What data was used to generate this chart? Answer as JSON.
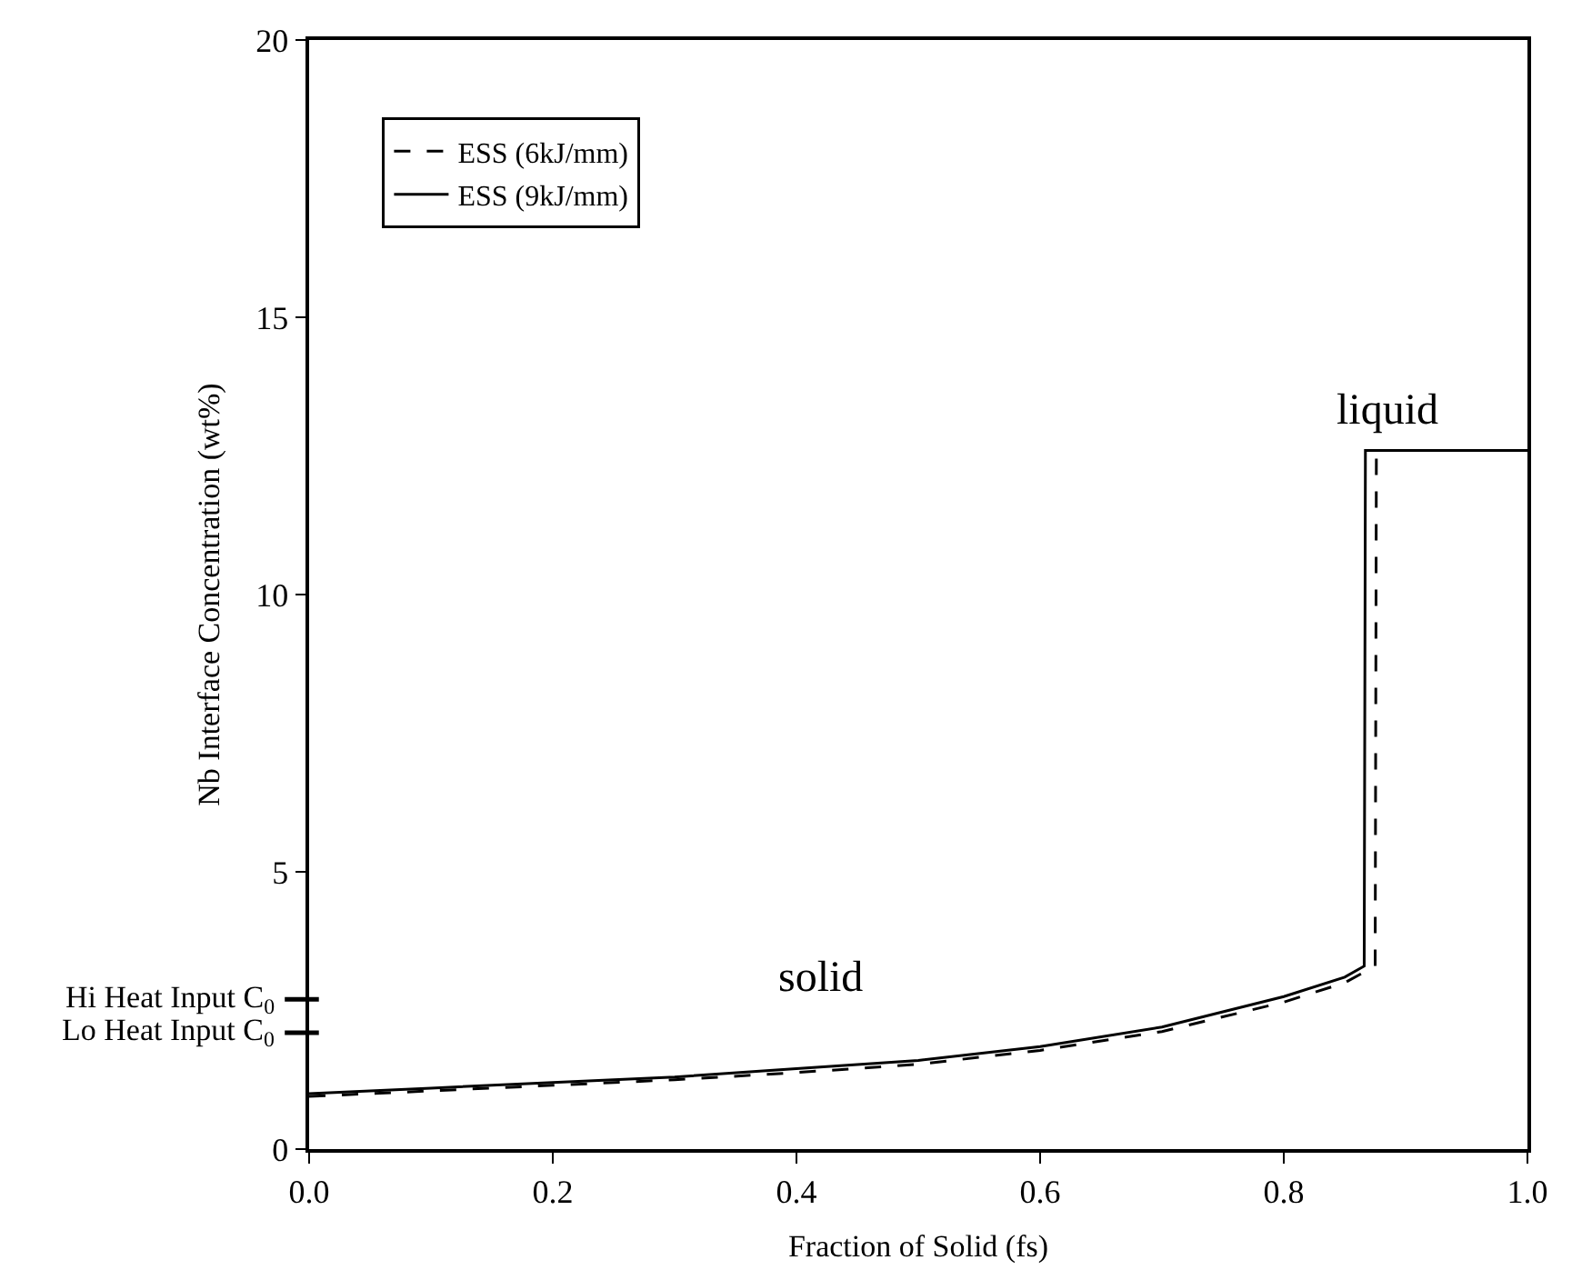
{
  "chart_data": {
    "type": "line",
    "xlabel": "Fraction of Solid (fs)",
    "ylabel": "Nb Interface Concentration (wt%)",
    "xlim": [
      0,
      1
    ],
    "ylim": [
      0,
      20
    ],
    "xticks": [
      {
        "value": 0,
        "label": "0.0"
      },
      {
        "value": 0.2,
        "label": "0.2"
      },
      {
        "value": 0.4,
        "label": "0.4"
      },
      {
        "value": 0.6,
        "label": "0.6"
      },
      {
        "value": 0.8,
        "label": "0.8"
      },
      {
        "value": 1,
        "label": "1.0"
      }
    ],
    "yticks": [
      0,
      5,
      10,
      15,
      20
    ],
    "ref_lines": [
      {
        "axis": "y",
        "value": 2.7,
        "label": "Hi Heat Input C$_{0}$"
      },
      {
        "axis": "y",
        "value": 2.1,
        "label": "Lo Heat Input C$_{0}$"
      }
    ],
    "legend": "top left",
    "marker": "none",
    "series": [
      {
        "name": "ESS (6kJ/mm)",
        "color": "#000000",
        "line_style": "dashed",
        "x": [
          0,
          0.1,
          0.2,
          0.3,
          0.4,
          0.5,
          0.6,
          0.7,
          0.8,
          0.85,
          0.875,
          0.876,
          1.0
        ],
        "values": [
          0.95,
          1.05,
          1.15,
          1.25,
          1.38,
          1.53,
          1.78,
          2.12,
          2.65,
          3.0,
          3.3,
          12.6,
          12.6
        ]
      },
      {
        "name": "ESS (9kJ/mm)",
        "color": "#000000",
        "line_style": "solid",
        "x": [
          0,
          0.1,
          0.2,
          0.3,
          0.4,
          0.5,
          0.6,
          0.7,
          0.8,
          0.85,
          0.866,
          0.867,
          1.0
        ],
        "values": [
          1.0,
          1.1,
          1.2,
          1.3,
          1.45,
          1.6,
          1.85,
          2.2,
          2.75,
          3.1,
          3.3,
          12.6,
          12.6
        ]
      }
    ],
    "annotations": [
      "solid",
      "liquid"
    ]
  }
}
